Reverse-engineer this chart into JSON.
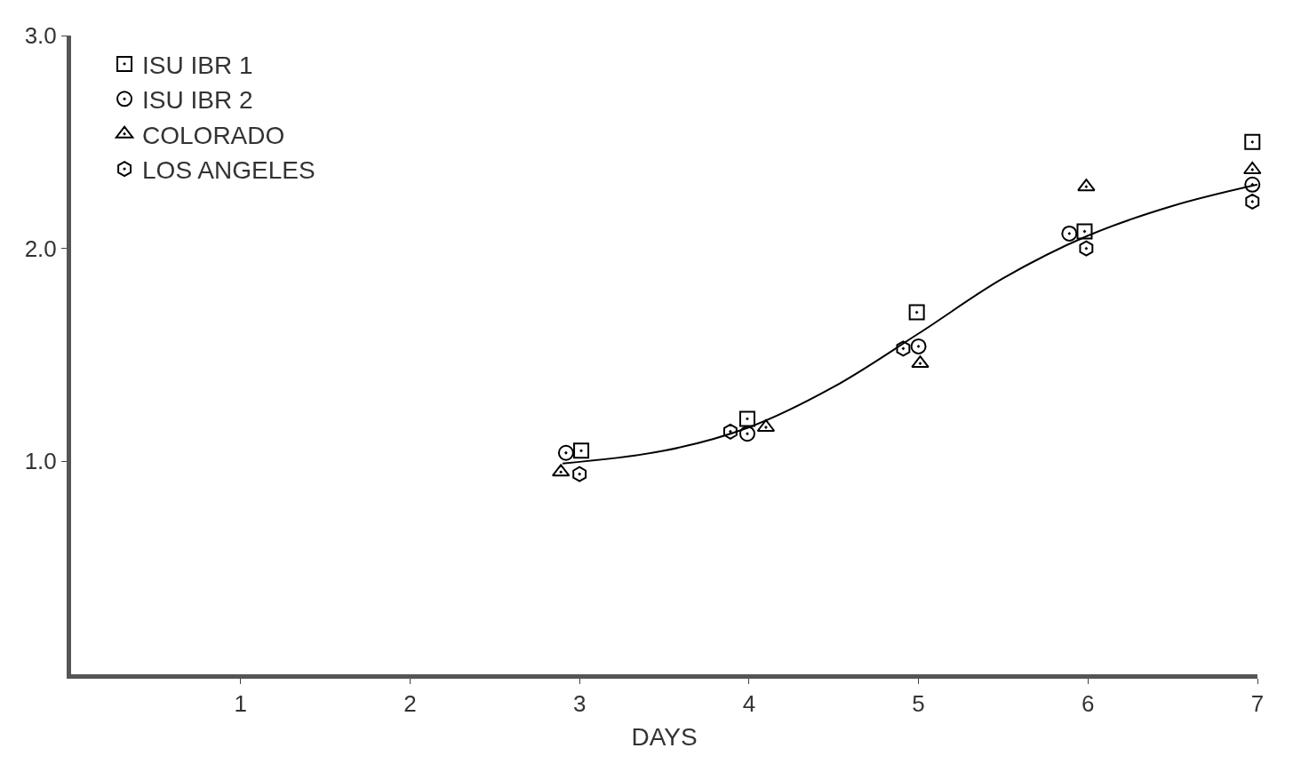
{
  "chart_data": {
    "type": "scatter",
    "xlabel": "DAYS",
    "series": [
      {
        "name": "ISU IBR 1",
        "color": "#000000",
        "marker": "square",
        "x": [
          3.01,
          3.99,
          4.99,
          5.98,
          6.97
        ],
        "values": [
          1.05,
          1.2,
          1.7,
          2.08,
          2.5
        ]
      },
      {
        "name": "ISU IBR 2",
        "color": "#000000",
        "marker": "circle",
        "x": [
          2.92,
          3.99,
          5.0,
          5.89,
          6.97
        ],
        "values": [
          1.04,
          1.13,
          1.54,
          2.07,
          2.3
        ]
      },
      {
        "name": "COLORADO",
        "color": "#000000",
        "marker": "triangle",
        "x": [
          2.89,
          4.1,
          5.01,
          5.99,
          6.97
        ],
        "values": [
          0.95,
          1.16,
          1.46,
          2.29,
          2.37
        ]
      },
      {
        "name": "LOS ANGELES",
        "color": "#000000",
        "x": [
          3.0,
          3.89,
          4.91,
          5.99,
          6.97
        ],
        "values": [
          0.94,
          1.14,
          1.53,
          2.0,
          2.22
        ]
      },
      {
        "type": "line",
        "color": "#000000",
        "line_style": "solid",
        "x": [
          2.9,
          3.5,
          4.0,
          4.5,
          5.0,
          5.5,
          6.0,
          6.5,
          7.0
        ],
        "values": [
          0.99,
          1.05,
          1.16,
          1.35,
          1.6,
          1.86,
          2.06,
          2.2,
          2.3
        ]
      }
    ],
    "xlim": [
      0,
      7
    ],
    "xticks": [
      1,
      2,
      3,
      4,
      5,
      6,
      7
    ],
    "ylim": [
      0,
      3
    ],
    "yticks": [
      {
        "value": 1,
        "label": "1.0"
      },
      {
        "value": 2,
        "label": "2.0"
      },
      {
        "value": 3,
        "label": "3.0"
      }
    ],
    "legend": "top left"
  }
}
